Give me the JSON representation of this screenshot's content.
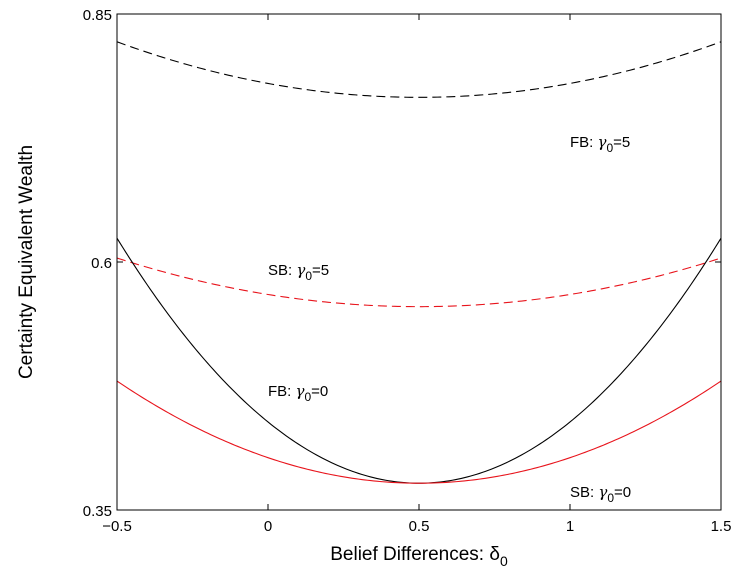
{
  "chart_data": {
    "type": "line",
    "xlabel": "Belief Differences: δ",
    "xlabel_subscript": "0",
    "ylabel": "Certainty Equivalent Wealth",
    "xlim": [
      -0.5,
      1.5
    ],
    "ylim": [
      0.35,
      0.85
    ],
    "x_ticks": [
      -0.5,
      0,
      0.5,
      1,
      1.5
    ],
    "x_tick_labels": [
      "−0.5",
      "0",
      "0.5",
      "1",
      "1.5"
    ],
    "y_ticks": [
      0.35,
      0.6,
      0.85
    ],
    "y_tick_labels": [
      "0.35",
      "0.6",
      "0.85"
    ],
    "grid": false,
    "series": [
      {
        "color": "#000000",
        "dash": "dashed",
        "vertex": [
          0.5,
          0.766
        ],
        "edge_value": 0.822
      },
      {
        "color": "#e8141c",
        "dash": "dashed",
        "vertex": [
          0.5,
          0.555
        ],
        "edge_value": 0.604
      },
      {
        "color": "#000000",
        "dash": "solid",
        "vertex": [
          0.5,
          0.377
        ],
        "edge_value": 0.624
      },
      {
        "color": "#e8141c",
        "dash": "solid",
        "vertex": [
          0.5,
          0.377
        ],
        "edge_value": 0.48
      }
    ],
    "annotations": [
      {
        "prefix": "FB: ",
        "symbol": "γ",
        "sub": "0",
        "suffix": "=5",
        "x": 1.0,
        "y": 0.716
      },
      {
        "prefix": "SB: ",
        "symbol": "γ",
        "sub": "0",
        "suffix": "=5",
        "x": 0.0,
        "y": 0.587
      },
      {
        "prefix": "FB: ",
        "symbol": "γ",
        "sub": "0",
        "suffix": "=0",
        "x": 0.0,
        "y": 0.465
      },
      {
        "prefix": "SB: ",
        "symbol": "γ",
        "sub": "0",
        "suffix": "=0",
        "x": 1.0,
        "y": 0.363
      }
    ]
  }
}
